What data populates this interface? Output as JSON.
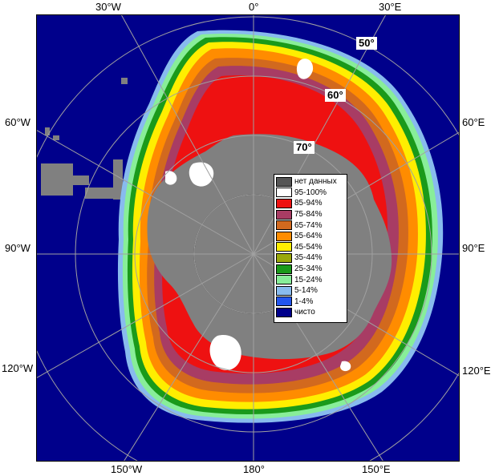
{
  "longitude_labels": {
    "top": [
      "30°W",
      "0°",
      "30°E"
    ],
    "bottom": [
      "150°W",
      "180°",
      "150°E"
    ],
    "left": [
      "60°W",
      "90°W",
      "120°W"
    ],
    "right": [
      "60°E",
      "90°E",
      "120°E"
    ]
  },
  "latitude_labels": [
    "50°",
    "60°",
    "70°"
  ],
  "legend": [
    {
      "label": "нет данных",
      "color": "#555555"
    },
    {
      "label": "95-100%",
      "color": "#ffffff"
    },
    {
      "label": "85-94%",
      "color": "#ee1111"
    },
    {
      "label": "75-84%",
      "color": "#a83c64"
    },
    {
      "label": "65-74%",
      "color": "#d2691e"
    },
    {
      "label": "55-64%",
      "color": "#ff8c00"
    },
    {
      "label": "45-54%",
      "color": "#ffee00"
    },
    {
      "label": "35-44%",
      "color": "#9aa80a"
    },
    {
      "label": "25-34%",
      "color": "#1a9a1a"
    },
    {
      "label": "15-24%",
      "color": "#88ee99"
    },
    {
      "label": "5-14%",
      "color": "#88bbee"
    },
    {
      "label": "1-4%",
      "color": "#2255ee"
    },
    {
      "label": "чисто",
      "color": "#00008b"
    }
  ],
  "colors": {
    "ocean": "#00008b",
    "land": "#808080",
    "no_data": "#555555",
    "graticule": "#a0a0a0"
  }
}
